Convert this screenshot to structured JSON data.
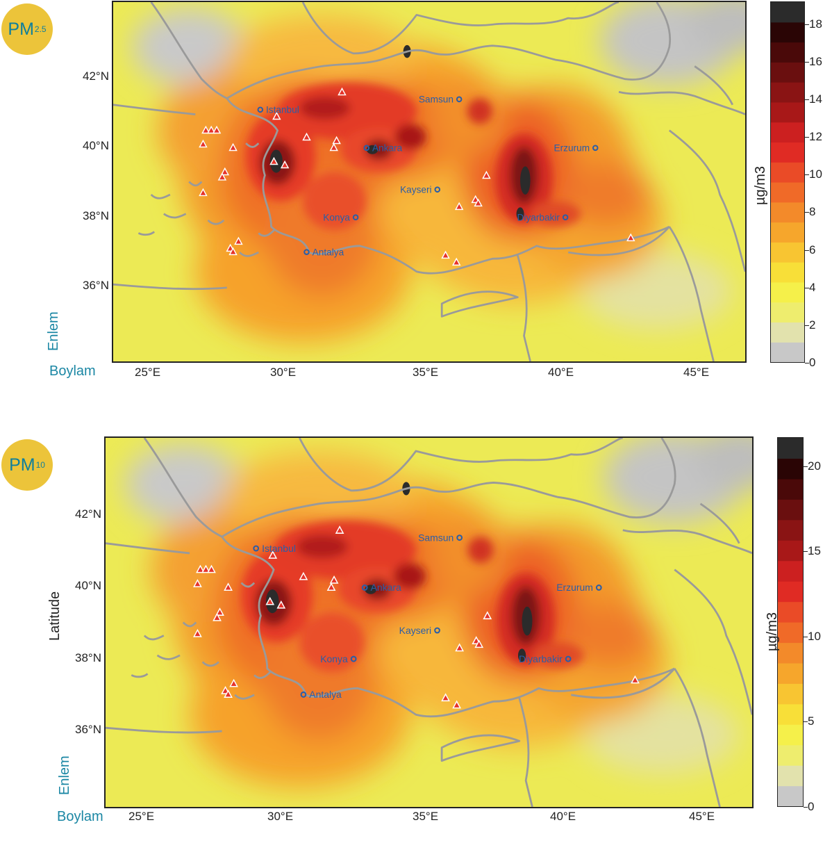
{
  "panels": [
    {
      "badge": "PM",
      "badge_sub": "2.5",
      "unit": "µg/m3",
      "colorbar_ticks": [
        "0",
        "2",
        "4",
        "6",
        "8",
        "10",
        "12",
        "14",
        "16",
        "18"
      ],
      "colorbar_max": 19.2,
      "y_axis_name": "Enlem",
      "x_axis_name": "Boylam",
      "hidden_label": ""
    },
    {
      "badge": "PM",
      "badge_sub": "10",
      "unit": "µg/m3",
      "colorbar_ticks": [
        "0",
        "5",
        "10",
        "15",
        "20"
      ],
      "colorbar_max": 21.7,
      "y_axis_name": "Enlem",
      "x_axis_name": "Boylam",
      "hidden_label": "Latitude"
    }
  ],
  "x_ticks": [
    "25°E",
    "30°E",
    "35°E",
    "40°E",
    "45°E"
  ],
  "y_ticks": [
    "42°N",
    "40°N",
    "38°N",
    "36°N"
  ],
  "cities": [
    {
      "name": "Istanbul",
      "lon": 29.0,
      "lat": 41.0
    },
    {
      "name": "Samsun",
      "lon": 36.3,
      "lat": 41.3
    },
    {
      "name": "Ankara",
      "lon": 32.9,
      "lat": 39.9
    },
    {
      "name": "Erzurum",
      "lon": 41.3,
      "lat": 39.9
    },
    {
      "name": "Kayseri",
      "lon": 35.5,
      "lat": 38.7
    },
    {
      "name": "Konya",
      "lon": 32.5,
      "lat": 37.9
    },
    {
      "name": "Diyarbakir",
      "lon": 40.2,
      "lat": 37.9
    },
    {
      "name": "Antalya",
      "lon": 30.7,
      "lat": 36.9
    }
  ],
  "stations": [
    [
      27.0,
      40.4
    ],
    [
      27.2,
      40.4
    ],
    [
      27.4,
      40.4
    ],
    [
      26.9,
      40.0
    ],
    [
      28.0,
      39.9
    ],
    [
      29.6,
      40.8
    ],
    [
      30.7,
      40.2
    ],
    [
      31.8,
      40.1
    ],
    [
      31.7,
      39.9
    ],
    [
      29.5,
      39.5
    ],
    [
      29.9,
      39.4
    ],
    [
      27.7,
      39.2
    ],
    [
      27.6,
      39.05
    ],
    [
      26.9,
      38.6
    ],
    [
      28.2,
      37.2
    ],
    [
      27.9,
      37.0
    ],
    [
      28.0,
      36.9
    ],
    [
      32.0,
      41.5
    ],
    [
      37.3,
      39.1
    ],
    [
      36.9,
      38.4
    ],
    [
      37.0,
      38.3
    ],
    [
      36.3,
      38.2
    ],
    [
      35.8,
      36.8
    ],
    [
      36.2,
      36.6
    ],
    [
      42.6,
      37.3
    ]
  ]
}
